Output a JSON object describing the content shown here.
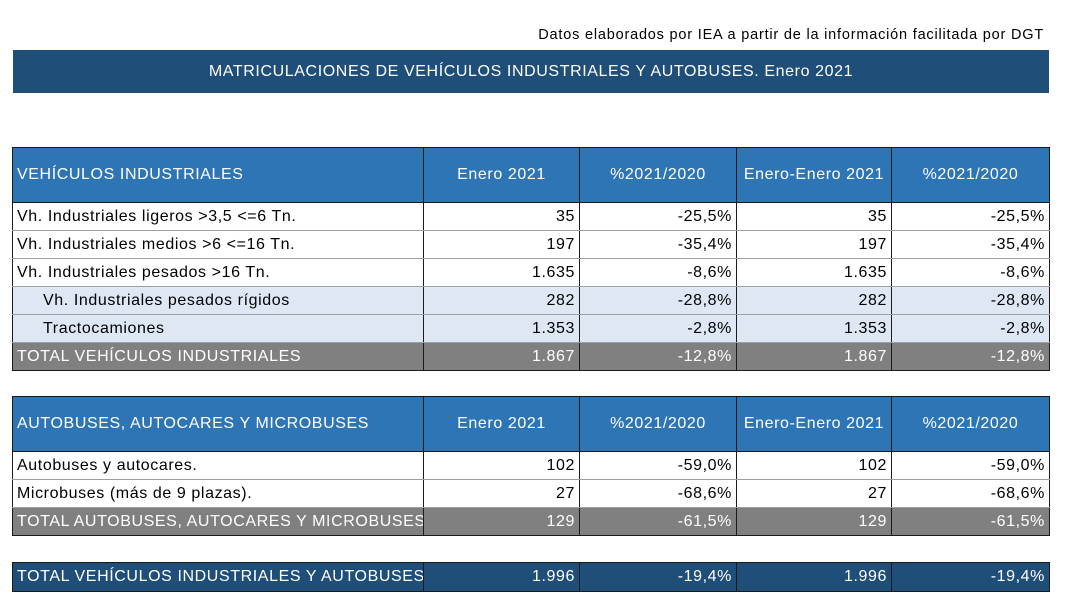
{
  "header": {
    "source_note": "Datos elaborados por IEA a partir de la información facilitada por DGT",
    "title": "MATRICULACIONES DE VEHÍCULOS INDUSTRIALES Y AUTOBUSES.  Enero 2021"
  },
  "industrial": {
    "columns": [
      "VEHÍCULOS INDUSTRIALES",
      "Enero 2021",
      "%2021/2020",
      "Enero-Enero 2021",
      "%2021/2020"
    ],
    "rows": [
      {
        "label": "Vh. Industriales ligeros >3,5 <=6 Tn.",
        "month": "35",
        "pct": "-25,5%",
        "ytd": "35",
        "ytd_pct": "-25,5%"
      },
      {
        "label": "Vh. Industriales medios >6  <=16 Tn.",
        "month": "197",
        "pct": "-35,4%",
        "ytd": "197",
        "ytd_pct": "-35,4%"
      },
      {
        "label": "Vh. Industriales  pesados >16 Tn.",
        "month": "1.635",
        "pct": "-8,6%",
        "ytd": "1.635",
        "ytd_pct": "-8,6%"
      },
      {
        "label": "Vh. Industriales pesados rígidos",
        "month": "282",
        "pct": "-28,8%",
        "ytd": "282",
        "ytd_pct": "-28,8%"
      },
      {
        "label": "Tractocamiones",
        "month": "1.353",
        "pct": "-2,8%",
        "ytd": "1.353",
        "ytd_pct": "-2,8%"
      }
    ],
    "total": {
      "label": "TOTAL VEHÍCULOS INDUSTRIALES",
      "month": "1.867",
      "pct": "-12,8%",
      "ytd": "1.867",
      "ytd_pct": "-12,8%"
    }
  },
  "buses": {
    "columns": [
      "AUTOBUSES, AUTOCARES Y MICROBUSES",
      "Enero 2021",
      "%2021/2020",
      "Enero-Enero 2021",
      "%2021/2020"
    ],
    "rows": [
      {
        "label": "Autobuses y autocares.",
        "month": "102",
        "pct": "-59,0%",
        "ytd": "102",
        "ytd_pct": "-59,0%"
      },
      {
        "label": "Microbuses (más de 9 plazas).",
        "month": "27",
        "pct": "-68,6%",
        "ytd": "27",
        "ytd_pct": "-68,6%"
      }
    ],
    "total": {
      "label": "TOTAL AUTOBUSES, AUTOCARES Y MICROBUSES",
      "month": "129",
      "pct": "-61,5%",
      "ytd": "129",
      "ytd_pct": "-61,5%"
    }
  },
  "grand_total": {
    "label": "TOTAL VEHÍCULOS INDUSTRIALES Y AUTOBUSES",
    "month": "1.996",
    "pct": "-19,4%",
    "ytd": "1.996",
    "ytd_pct": "-19,4%"
  }
}
